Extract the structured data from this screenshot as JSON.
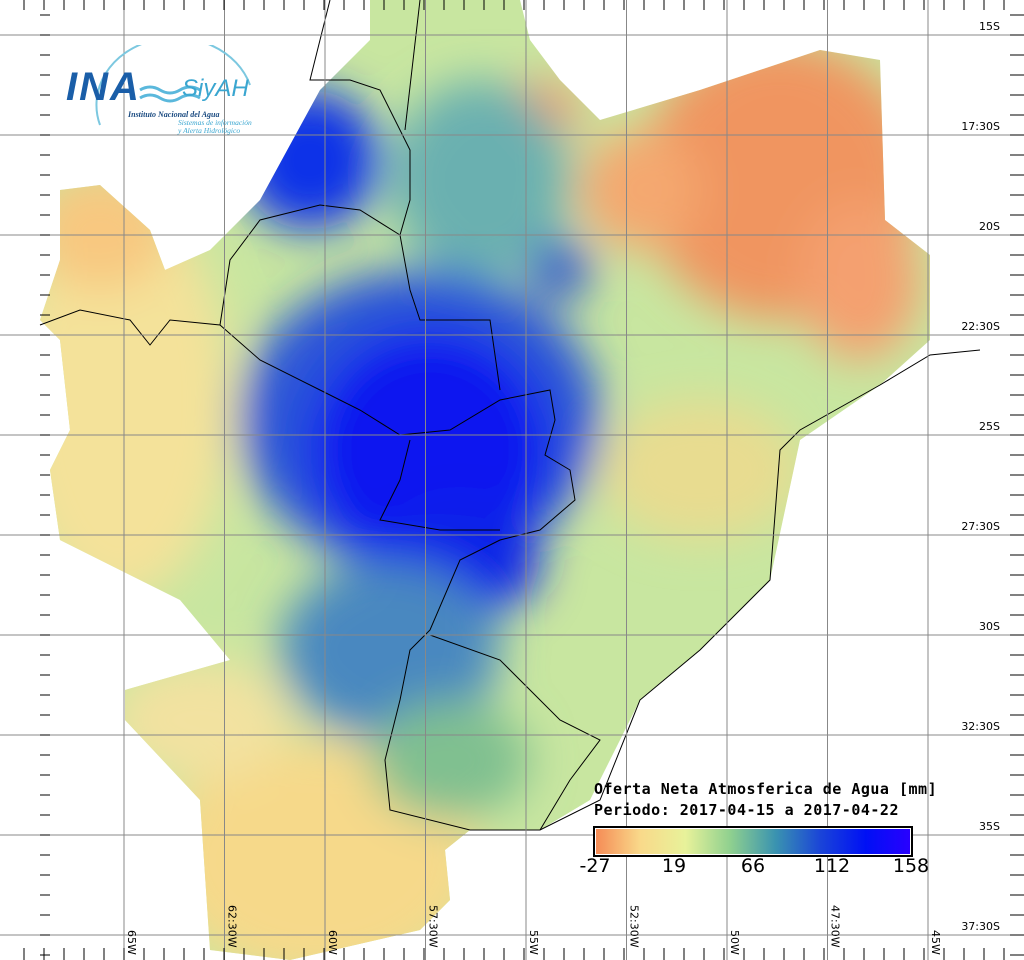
{
  "logo": {
    "acronym": "INA",
    "system": "SiyAH",
    "institute": "Instituto Nacional del Agua",
    "system_line1": "Sistemas de información",
    "system_line2": "y Alerta Hidrológico"
  },
  "legend": {
    "title": "Oferta Neta Atmosferica de Agua [mm]",
    "period": "Periodo: 2017-04-15 a 2017-04-22",
    "ticks": [
      "-27",
      "19",
      "66",
      "112",
      "158"
    ],
    "colors": [
      "#f58a55",
      "#f9d98a",
      "#e8f29a",
      "#8fd08f",
      "#3a93b0",
      "#1a44d8",
      "#0010f5",
      "#2a00ff"
    ]
  },
  "axes": {
    "lon_labels": [
      "65W",
      "62:30W",
      "60W",
      "57:30W",
      "55W",
      "52:30W",
      "50W",
      "47:30W",
      "45W"
    ],
    "lat_labels": [
      "15S",
      "17:30S",
      "20S",
      "22:30S",
      "25S",
      "27:30S",
      "30S",
      "32:30S",
      "35S",
      "37:30S"
    ]
  }
}
